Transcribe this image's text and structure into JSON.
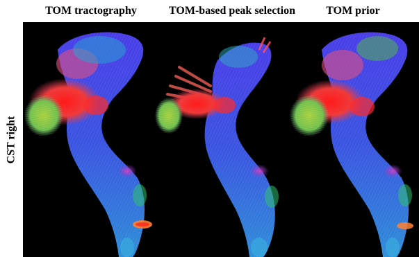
{
  "columns": [
    {
      "title": "TOM tractography"
    },
    {
      "title": "TOM-based peak selection"
    },
    {
      "title": "TOM prior"
    }
  ],
  "row_label": "CST right",
  "colors": {
    "background": "#000000",
    "fiber_blue": "#3344ee",
    "fiber_red": "#ff2020",
    "fiber_green": "#70d040",
    "fiber_magenta": "#c040d0"
  }
}
